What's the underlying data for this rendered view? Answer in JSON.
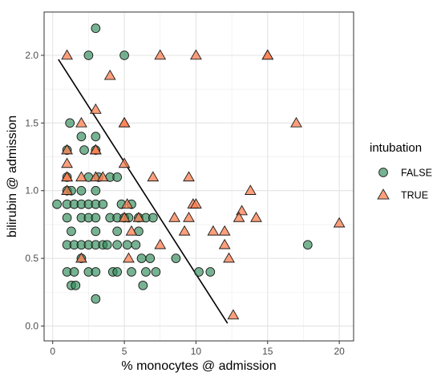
{
  "chart_data": {
    "type": "scatter",
    "title": "",
    "xlabel": "% monocytes @ admission",
    "ylabel": "bilirubin @ admission",
    "xlim": [
      -0.6,
      21.0
    ],
    "ylim": [
      -0.11,
      2.32
    ],
    "x_ticks": [
      0,
      5,
      10,
      15,
      20
    ],
    "y_ticks": [
      0.0,
      0.5,
      1.0,
      1.5,
      2.0
    ],
    "x_tick_labels": [
      "0",
      "5",
      "10",
      "15",
      "20"
    ],
    "y_tick_labels": [
      "0.0",
      "0.5",
      "1.0",
      "1.5",
      "2.0"
    ],
    "grid": true,
    "legend": {
      "title": "intubation",
      "placement": "right",
      "entries": [
        "FALSE",
        "TRUE"
      ]
    },
    "series": [
      {
        "name": "FALSE",
        "marker": "circle",
        "color": "#2e8b57",
        "points": [
          [
            3.0,
            2.2
          ],
          [
            2.5,
            2.0
          ],
          [
            5.0,
            2.0
          ],
          [
            1.2,
            1.5
          ],
          [
            1.0,
            1.3
          ],
          [
            2.0,
            1.4
          ],
          [
            2.2,
            1.3
          ],
          [
            3.0,
            1.4
          ],
          [
            3.0,
            1.3
          ],
          [
            1.0,
            1.1
          ],
          [
            2.5,
            1.1
          ],
          [
            3.2,
            1.1
          ],
          [
            4.0,
            1.1
          ],
          [
            4.5,
            1.1
          ],
          [
            0.3,
            0.9
          ],
          [
            1.0,
            1.0
          ],
          [
            1.0,
            0.9
          ],
          [
            1.0,
            0.8
          ],
          [
            1.3,
            1.0
          ],
          [
            1.5,
            0.9
          ],
          [
            2.0,
            1.0
          ],
          [
            2.0,
            0.9
          ],
          [
            2.0,
            0.8
          ],
          [
            2.5,
            0.9
          ],
          [
            2.5,
            0.8
          ],
          [
            3.0,
            1.0
          ],
          [
            3.0,
            0.9
          ],
          [
            3.0,
            0.8
          ],
          [
            3.0,
            0.7
          ],
          [
            3.5,
            0.9
          ],
          [
            4.0,
            0.8
          ],
          [
            4.5,
            0.8
          ],
          [
            4.8,
            0.9
          ],
          [
            5.0,
            0.8
          ],
          [
            5.3,
            0.8
          ],
          [
            5.5,
            0.9
          ],
          [
            6.0,
            0.8
          ],
          [
            6.5,
            0.8
          ],
          [
            7.0,
            0.8
          ],
          [
            1.0,
            0.6
          ],
          [
            1.5,
            0.6
          ],
          [
            2.0,
            0.6
          ],
          [
            2.5,
            0.6
          ],
          [
            3.0,
            0.6
          ],
          [
            3.5,
            0.6
          ],
          [
            3.8,
            0.6
          ],
          [
            4.5,
            0.6
          ],
          [
            5.2,
            0.6
          ],
          [
            5.8,
            0.6
          ],
          [
            1.3,
            0.7
          ],
          [
            4.5,
            0.7
          ],
          [
            6.0,
            0.7
          ],
          [
            1.0,
            0.4
          ],
          [
            1.5,
            0.4
          ],
          [
            2.0,
            0.5
          ],
          [
            2.5,
            0.4
          ],
          [
            3.0,
            0.4
          ],
          [
            4.2,
            0.4
          ],
          [
            4.5,
            0.4
          ],
          [
            5.5,
            0.4
          ],
          [
            6.2,
            0.5
          ],
          [
            6.5,
            0.4
          ],
          [
            6.8,
            0.5
          ],
          [
            7.2,
            0.4
          ],
          [
            8.6,
            0.5
          ],
          [
            10.2,
            0.4
          ],
          [
            11.0,
            0.4
          ],
          [
            1.3,
            0.3
          ],
          [
            1.6,
            0.3
          ],
          [
            6.3,
            0.3
          ],
          [
            3.0,
            0.2
          ],
          [
            17.8,
            0.6
          ]
        ]
      },
      {
        "name": "TRUE",
        "marker": "triangle",
        "color": "#ff7f50",
        "points": [
          [
            1.0,
            2.0
          ],
          [
            7.5,
            2.0
          ],
          [
            10.0,
            2.0
          ],
          [
            15.0,
            2.0
          ],
          [
            15.0,
            2.0
          ],
          [
            4.0,
            1.85
          ],
          [
            3.0,
            1.6
          ],
          [
            2.0,
            1.5
          ],
          [
            5.0,
            1.5
          ],
          [
            5.0,
            1.5
          ],
          [
            17.0,
            1.5
          ],
          [
            1.0,
            1.3
          ],
          [
            3.0,
            1.3
          ],
          [
            3.0,
            1.3
          ],
          [
            5.0,
            1.2
          ],
          [
            1.0,
            1.1
          ],
          [
            1.0,
            1.1
          ],
          [
            2.0,
            1.1
          ],
          [
            3.0,
            1.1
          ],
          [
            3.5,
            1.1
          ],
          [
            7.0,
            1.1
          ],
          [
            9.5,
            1.1
          ],
          [
            1.0,
            1.2
          ],
          [
            1.0,
            1.0
          ],
          [
            9.8,
            0.9
          ],
          [
            10.0,
            0.9
          ],
          [
            13.8,
            1.0
          ],
          [
            8.5,
            0.8
          ],
          [
            9.5,
            0.8
          ],
          [
            5.2,
            0.9
          ],
          [
            13.2,
            0.85
          ],
          [
            13.0,
            0.8
          ],
          [
            14.2,
            0.8
          ],
          [
            6.0,
            0.8
          ],
          [
            9.2,
            0.7
          ],
          [
            11.2,
            0.7
          ],
          [
            12.0,
            0.7
          ],
          [
            20.0,
            0.76
          ],
          [
            5.5,
            0.7
          ],
          [
            12.0,
            0.6
          ],
          [
            7.5,
            0.6
          ],
          [
            5.0,
            0.8
          ],
          [
            2.0,
            0.5
          ],
          [
            5.3,
            0.5
          ],
          [
            12.3,
            0.5
          ],
          [
            12.6,
            0.08
          ]
        ]
      }
    ],
    "annotations": [
      {
        "type": "line",
        "points": [
          [
            0.4,
            1.97
          ],
          [
            12.2,
            0.02
          ]
        ],
        "color": "#000000"
      }
    ]
  }
}
